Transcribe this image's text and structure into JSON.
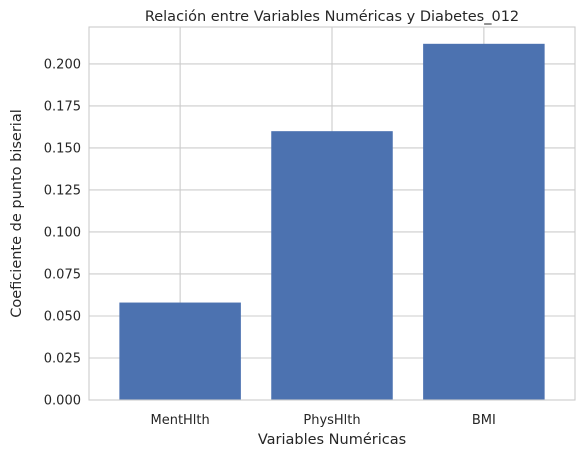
{
  "chart_data": {
    "type": "bar",
    "title": "Relación entre Variables Numéricas y Diabetes_012",
    "xlabel": "Variables Numéricas",
    "ylabel": "Coeficiente de punto biserial",
    "categories": [
      "MentHlth",
      "PhysHlth",
      "BMI"
    ],
    "values": [
      0.058,
      0.16,
      0.212
    ],
    "ylim": [
      0,
      0.222
    ],
    "yticks": [
      0,
      0.025,
      0.05,
      0.075,
      0.1,
      0.125,
      0.15,
      0.175,
      0.2
    ],
    "ytick_labels": [
      "0.000",
      "0.025",
      "0.050",
      "0.075",
      "0.100",
      "0.125",
      "0.150",
      "0.175",
      "0.200"
    ],
    "bar_color": "#4c72b0",
    "grid": true,
    "style": "seaborn-whitegrid"
  }
}
